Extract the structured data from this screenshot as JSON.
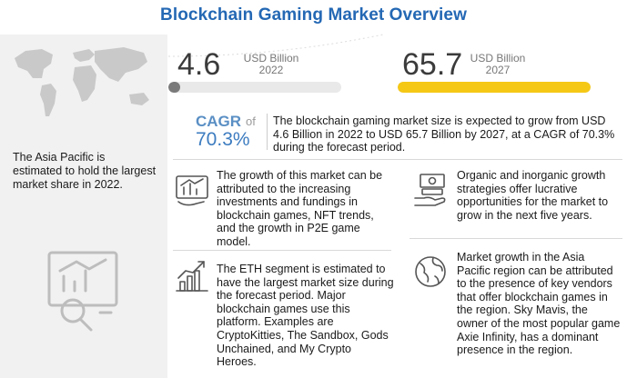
{
  "title": "Blockchain Gaming Market Overview",
  "left_panel": {
    "region_text": "The Asia Pacific is estimated to hold the largest market share in 2022.",
    "map_icon": "world-map-icon",
    "analytics_icon": "analytics-chart-icon"
  },
  "market_2022": {
    "value": "4.6",
    "unit": "USD Billion",
    "year": "2022",
    "bar_fraction": 0.07,
    "bar_color": "#7a7a7a"
  },
  "market_2027": {
    "value": "65.7",
    "unit": "USD Billion",
    "year": "2027",
    "bar_fraction": 1.0,
    "bar_color": "#f5c816"
  },
  "cagr": {
    "label": "CAGR",
    "of": "of",
    "value": "70.3%",
    "text": "The blockchain gaming market size is expected to grow from USD 4.6 Billion in 2022 to USD 65.7 Billion by 2027, at a CAGR of 70.3% during the forecast period."
  },
  "items": [
    {
      "icon": "investment-growth-icon",
      "text": "The growth of this market can be attributed to the increasing investments and fundings in blockchain games, NFT trends, and the growth in P2E game model."
    },
    {
      "icon": "bar-chart-growth-icon",
      "text": "The ETH segment is estimated to have the largest market size during the forecast period. Major blockchain games use this platform. Examples are CryptoKitties, The Sandbox, Gods Unchained, and My Crypto Heroes."
    },
    {
      "icon": "money-hand-icon",
      "text": "Organic and inorganic growth strategies offer lucrative opportunities for the market to grow in the next five years."
    },
    {
      "icon": "globe-icon",
      "text": "Market growth in the Asia Pacific region can be attributed to the presence of key vendors that offer blockchain games in the region. Sky Mavis, the owner of the most popular game Axie Infinity, has a dominant presence in the region."
    }
  ],
  "colors": {
    "title": "#2468b4",
    "accent_yellow": "#f5c816",
    "cagr_blue": "#3d7cc0",
    "left_panel_bg": "#f1f1f1"
  }
}
